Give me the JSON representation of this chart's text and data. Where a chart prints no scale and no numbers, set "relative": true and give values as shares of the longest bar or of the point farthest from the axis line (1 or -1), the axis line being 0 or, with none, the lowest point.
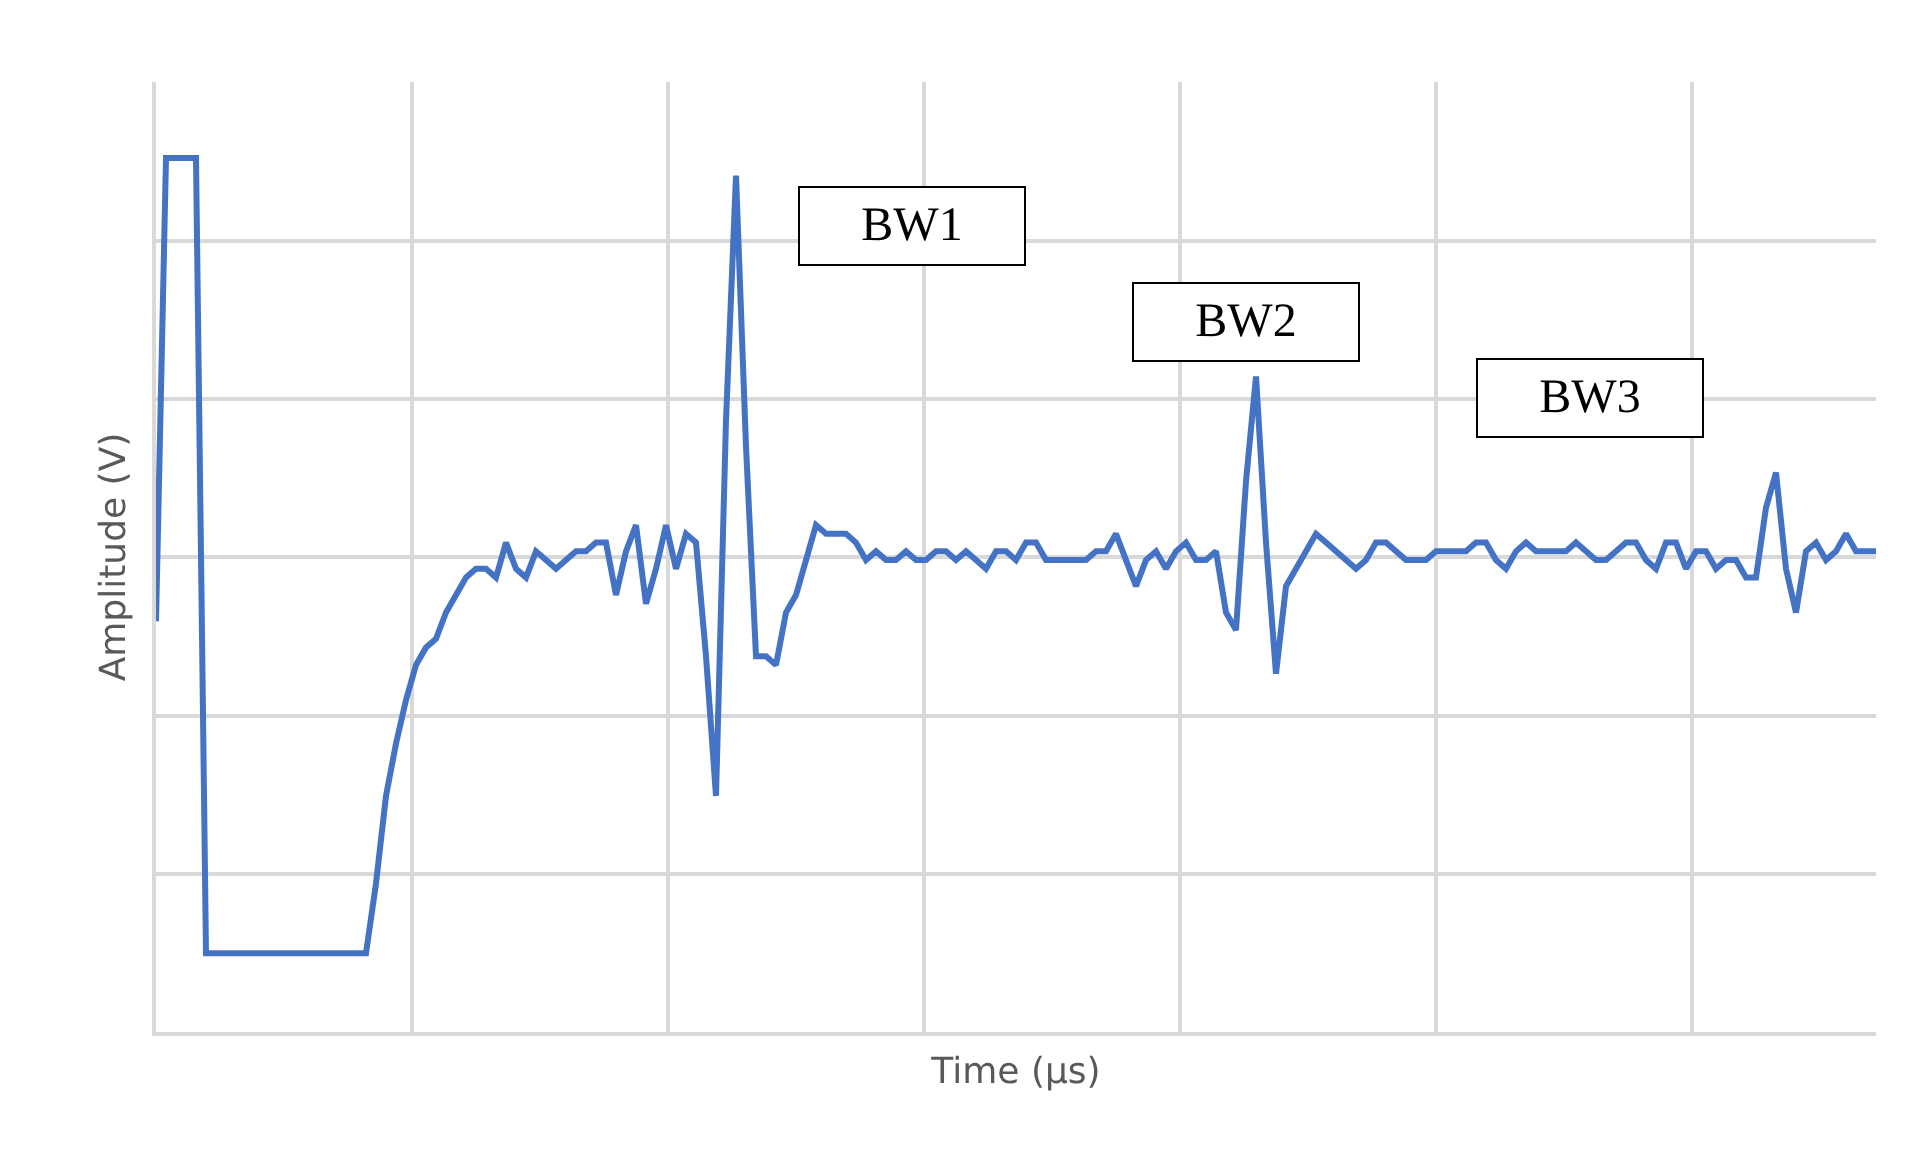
{
  "chart_data": {
    "type": "line",
    "relative": true,
    "xlabel": "Time (µs)",
    "ylabel": "Amplitude (V)",
    "grid": true,
    "marker": "none",
    "line_style": "solid",
    "annotations": [
      "BW1",
      "BW2",
      "BW3"
    ],
    "categories": [
      null,
      null,
      null,
      null,
      null,
      null,
      null,
      null,
      null,
      null,
      null,
      null,
      null,
      null,
      null,
      null,
      null,
      null,
      null,
      null,
      null,
      null,
      null,
      null,
      null,
      null,
      null,
      null,
      null,
      null,
      null,
      null,
      null,
      null,
      null,
      null,
      null,
      null,
      null,
      null,
      null,
      null,
      null,
      null,
      null,
      null,
      null,
      null,
      null,
      null,
      null,
      null,
      null,
      null,
      null,
      null,
      null,
      null,
      null,
      null,
      null,
      null,
      null,
      null,
      null,
      null,
      null,
      null,
      null,
      null,
      null,
      null,
      null,
      null,
      null,
      null,
      null,
      null,
      null,
      null,
      null,
      null,
      null,
      null,
      null,
      null,
      null,
      null,
      null,
      null,
      null,
      null,
      null,
      null,
      null,
      null,
      null,
      null,
      null,
      null,
      null,
      null,
      null,
      null,
      null,
      null,
      null,
      null,
      null,
      null,
      null,
      null,
      null,
      null,
      null,
      null,
      null,
      null,
      null,
      null,
      null,
      null,
      null,
      null,
      null,
      null,
      null,
      null,
      null,
      null,
      null,
      null,
      null,
      null,
      null,
      null,
      null,
      null,
      null,
      null,
      null,
      null,
      null,
      null,
      null,
      null,
      null,
      null,
      null,
      null,
      null,
      null,
      null,
      null,
      null,
      null,
      null,
      null,
      null,
      null,
      null,
      null,
      null,
      null,
      null,
      null,
      null,
      null,
      null,
      null,
      null,
      null,
      null
    ],
    "series": [
      {
        "color": "#4472c4",
        "values": [
          0.47,
          1.0,
          1.0,
          1.0,
          1.0,
          0.09,
          0.09,
          0.09,
          0.09,
          0.09,
          0.09,
          0.09,
          0.09,
          0.09,
          0.09,
          0.09,
          0.09,
          0.09,
          0.09,
          0.09,
          0.09,
          0.09,
          0.17,
          0.27,
          0.33,
          0.38,
          0.42,
          0.44,
          0.45,
          0.48,
          0.5,
          0.52,
          0.53,
          0.53,
          0.52,
          0.56,
          0.53,
          0.52,
          0.55,
          0.54,
          0.53,
          0.54,
          0.55,
          0.55,
          0.56,
          0.56,
          0.5,
          0.55,
          0.58,
          0.49,
          0.53,
          0.58,
          0.53,
          0.57,
          0.56,
          0.43,
          0.27,
          0.7,
          0.98,
          0.67,
          0.43,
          0.43,
          0.42,
          0.48,
          0.5,
          0.54,
          0.58,
          0.57,
          0.57,
          0.57,
          0.56,
          0.54,
          0.55,
          0.54,
          0.54,
          0.55,
          0.54,
          0.54,
          0.55,
          0.55,
          0.54,
          0.55,
          0.54,
          0.53,
          0.55,
          0.55,
          0.54,
          0.56,
          0.56,
          0.54,
          0.54,
          0.54,
          0.54,
          0.54,
          0.55,
          0.55,
          0.57,
          0.54,
          0.51,
          0.54,
          0.55,
          0.53,
          0.55,
          0.56,
          0.54,
          0.54,
          0.55,
          0.48,
          0.46,
          0.63,
          0.75,
          0.56,
          0.41,
          0.51,
          0.53,
          0.55,
          0.57,
          0.56,
          0.55,
          0.54,
          0.53,
          0.54,
          0.56,
          0.56,
          0.55,
          0.54,
          0.54,
          0.54,
          0.55,
          0.55,
          0.55,
          0.55,
          0.56,
          0.56,
          0.54,
          0.53,
          0.55,
          0.56,
          0.55,
          0.55,
          0.55,
          0.55,
          0.56,
          0.55,
          0.54,
          0.54,
          0.55,
          0.56,
          0.56,
          0.54,
          0.53,
          0.56,
          0.56,
          0.53,
          0.55,
          0.55,
          0.53,
          0.54,
          0.54,
          0.52,
          0.52,
          0.6,
          0.64,
          0.53,
          0.48,
          0.55,
          0.56,
          0.54,
          0.55,
          0.57,
          0.55,
          0.55,
          0.55
        ]
      }
    ]
  }
}
